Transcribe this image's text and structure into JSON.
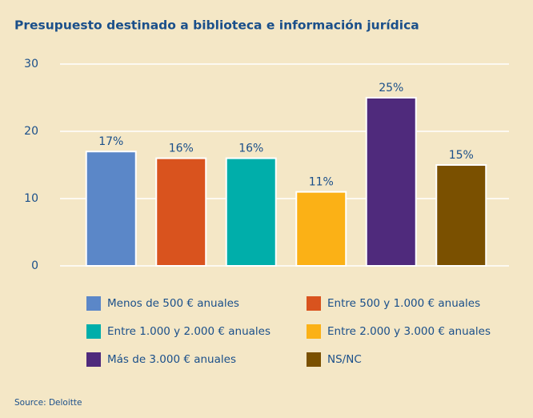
{
  "chart_data": {
    "type": "bar",
    "title": "Presupuesto destinado a biblioteca e información jurídica",
    "categories": [
      "Menos de 500 € anuales",
      "Entre 500 y 1.000 € anuales",
      "Entre 1.000 y 2.000 € anuales",
      "Entre 2.000 y 3.000 € anuales",
      "Más de 3.000 € anuales",
      "NS/NC"
    ],
    "values": [
      17,
      16,
      16,
      11,
      25,
      15
    ],
    "value_labels": [
      "17%",
      "16%",
      "16%",
      "11%",
      "25%",
      "15%"
    ],
    "colors": [
      "#5b87c8",
      "#d9531e",
      "#00aeaa",
      "#fbb116",
      "#4f2a7c",
      "#7a5000"
    ],
    "ylim": [
      0,
      30
    ],
    "yticks": [
      0,
      10,
      20,
      30
    ],
    "grid": true,
    "source": "Source: Deloitte"
  }
}
